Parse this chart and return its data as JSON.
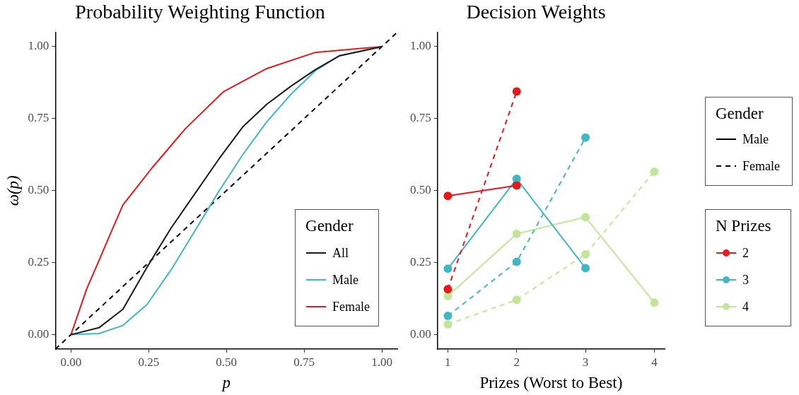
{
  "chart_data": [
    {
      "type": "line",
      "title": "Probability Weighting Function",
      "xlabel": "p",
      "ylabel": "ω(p)",
      "legend_title": "Gender",
      "legend": "bottom right",
      "marker": "none",
      "grid": false,
      "xlim": [
        -0.05,
        1.05
      ],
      "ylim": [
        -0.05,
        1.05
      ],
      "xticks": [
        {
          "value": 0,
          "label": "0.00"
        },
        {
          "value": 0.25,
          "label": "0.25"
        },
        {
          "value": 0.5,
          "label": "0.50"
        },
        {
          "value": 0.75,
          "label": "0.75"
        },
        {
          "value": 1,
          "label": "1.00"
        }
      ],
      "yticks": [
        {
          "value": 0,
          "label": "0.00"
        },
        {
          "value": 0.25,
          "label": "0.25"
        },
        {
          "value": 0.5,
          "label": "0.50"
        },
        {
          "value": 0.75,
          "label": "0.75"
        },
        {
          "value": 1,
          "label": "1.00"
        }
      ],
      "series": [
        {
          "name": "All",
          "color": "#1a1a1a",
          "x": [
            0,
            0.09,
            0.167,
            0.244,
            0.322,
            0.399,
            0.476,
            0.554,
            0.63,
            0.708,
            0.786,
            0.863,
            1
          ],
          "values": [
            0,
            0.024,
            0.088,
            0.233,
            0.37,
            0.49,
            0.61,
            0.723,
            0.8,
            0.863,
            0.92,
            0.968,
            1
          ]
        },
        {
          "name": "Male",
          "color": "#41b6c4",
          "x": [
            0,
            0.09,
            0.167,
            0.244,
            0.322,
            0.399,
            0.476,
            0.554,
            0.63,
            0.708,
            0.786,
            0.863,
            1
          ],
          "values": [
            0,
            0.004,
            0.032,
            0.104,
            0.225,
            0.361,
            0.498,
            0.627,
            0.739,
            0.835,
            0.916,
            0.968,
            1
          ]
        },
        {
          "name": "Female",
          "color": "#e41a1c",
          "x": [
            0,
            0.051,
            0.09,
            0.128,
            0.167,
            0.26,
            0.368,
            0.49,
            0.63,
            0.786,
            1
          ],
          "values": [
            0,
            0.16,
            0.257,
            0.353,
            0.45,
            0.578,
            0.715,
            0.843,
            0.924,
            0.98,
            1
          ]
        },
        {
          "color": "#000000",
          "line_style": "dashed",
          "x": [
            -0.05,
            1.05
          ],
          "values": [
            -0.05,
            1.05
          ]
        }
      ]
    },
    {
      "type": "line",
      "title": "Decision Weights",
      "xlabel": "Prizes (Worst to Best)",
      "legend_title": "N Prizes",
      "legend": "right",
      "marker": "circle",
      "grid": false,
      "annotations": [
        "Gender",
        "Male",
        "Female"
      ],
      "xlim": [
        0.85,
        4.15
      ],
      "ylim": [
        -0.05,
        1.05
      ],
      "xticks": [
        1,
        2,
        3,
        4
      ],
      "yticks": [
        {
          "value": 0,
          "label": "0.00"
        },
        {
          "value": 0.25,
          "label": "0.25"
        },
        {
          "value": 0.5,
          "label": "0.50"
        },
        {
          "value": 0.75,
          "label": "0.75"
        },
        {
          "value": 1,
          "label": "1.00"
        }
      ],
      "series": [
        {
          "name": "2",
          "color": "#e41a1c",
          "line_style": "solid",
          "x": [
            1,
            2
          ],
          "values": [
            0.482,
            0.518
          ]
        },
        {
          "name": "2",
          "color": "#e41a1c",
          "line_style": "dashed",
          "x": [
            1,
            2
          ],
          "values": [
            0.158,
            0.844
          ]
        },
        {
          "name": "3",
          "color": "#41b6c4",
          "line_style": "solid",
          "x": [
            1,
            2,
            3
          ],
          "values": [
            0.229,
            0.541,
            0.231
          ]
        },
        {
          "name": "3",
          "color": "#41b6c4",
          "line_style": "dashed",
          "x": [
            1,
            2,
            3
          ],
          "values": [
            0.065,
            0.253,
            0.684
          ]
        },
        {
          "name": "4",
          "color": "#c2e699",
          "line_style": "solid",
          "x": [
            1,
            2,
            3,
            4
          ],
          "values": [
            0.134,
            0.35,
            0.408,
            0.111
          ]
        },
        {
          "name": "4",
          "color": "#c2e699",
          "line_style": "dashed",
          "x": [
            1,
            2,
            3,
            4
          ],
          "values": [
            0.036,
            0.121,
            0.279,
            0.566
          ]
        }
      ]
    }
  ]
}
